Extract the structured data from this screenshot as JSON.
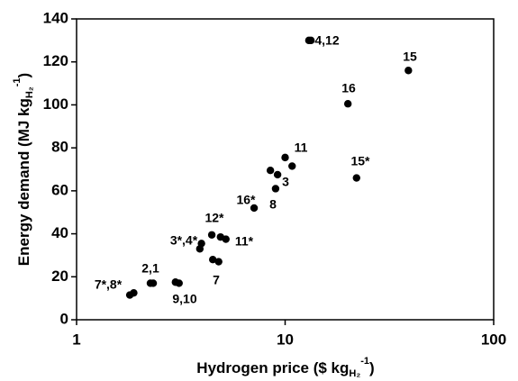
{
  "chart_data": {
    "type": "scatter",
    "x_label": {
      "main": "Hydrogen price ($ kg",
      "sub": "H₂",
      "sup": "-1",
      "end": ")"
    },
    "y_label": {
      "main": "Energy demand (MJ kg",
      "sub": "H₂",
      "sup": "-1",
      "end": ")"
    },
    "x_log": true,
    "xlim": [
      1,
      100
    ],
    "xticks": [
      1,
      10,
      100
    ],
    "ylim": [
      0,
      140
    ],
    "yticks": [
      0,
      20,
      40,
      60,
      80,
      100,
      120,
      140
    ],
    "color": "#000000",
    "x": [
      13.0,
      13.3,
      39,
      20,
      22,
      10,
      10.8,
      8.5,
      9.2,
      9.0,
      7.1,
      4.45,
      4.9,
      5.2,
      3.97,
      3.9,
      4.5,
      4.8,
      2.26,
      2.33,
      2.98,
      3.1,
      1.8,
      1.88
    ],
    "values": [
      130,
      130,
      116,
      100.5,
      66,
      75.5,
      71.5,
      69.5,
      67.5,
      61,
      52,
      39.5,
      38.5,
      37.5,
      35.5,
      33,
      28,
      27,
      17,
      17,
      17.5,
      17,
      11.5,
      12.5
    ],
    "annotations": [
      "4,12",
      "15",
      "16",
      "15*",
      "11",
      "3",
      "8",
      "16*",
      "12*",
      "11*",
      "3*,4*",
      "7",
      "2,1",
      "9,10",
      "7*,8*"
    ]
  }
}
